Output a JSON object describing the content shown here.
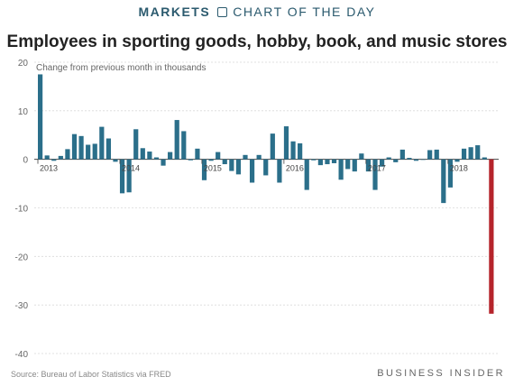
{
  "header": {
    "section": "MARKETS",
    "subtitle": "CHART OF THE DAY"
  },
  "footer": {
    "source": "Source: Bureau of Labor Statistics via FRED",
    "logo": "BUSINESS INSIDER"
  },
  "colors": {
    "bar": "#2b6f8a",
    "highlight": "#b5242b",
    "grid": "#d9d9d9",
    "axis_text": "#666666"
  },
  "icons": {
    "separator": "chart-frame-icon"
  },
  "chart_data": {
    "type": "bar",
    "title": "Employees in sporting goods, hobby, book, and music stores",
    "ylabel": "Change from previous month in thousands",
    "ylim": [
      -40,
      20
    ],
    "yticks": [
      20,
      10,
      0,
      -10,
      -20,
      -30,
      -40
    ],
    "grid": true,
    "x_start": "2013-01",
    "x_end": "2018-12",
    "xticks": [
      {
        "label": "2013",
        "index": 0
      },
      {
        "label": "2014",
        "index": 12
      },
      {
        "label": "2015",
        "index": 24
      },
      {
        "label": "2016",
        "index": 36
      },
      {
        "label": "2017",
        "index": 48
      },
      {
        "label": "2018",
        "index": 60
      }
    ],
    "values": [
      17.5,
      0.8,
      -0.3,
      0.7,
      2.1,
      5.2,
      4.8,
      3.0,
      3.2,
      6.7,
      4.3,
      -0.5,
      -7.0,
      -6.8,
      6.2,
      2.3,
      1.6,
      0.4,
      -1.3,
      1.5,
      8.1,
      5.8,
      -0.2,
      2.2,
      -4.3,
      -0.3,
      1.5,
      -1.0,
      -2.4,
      -3.1,
      0.9,
      -4.8,
      0.9,
      -3.3,
      5.3,
      -4.8,
      6.8,
      3.7,
      3.3,
      -6.3,
      -0.2,
      -1.2,
      -1.0,
      -0.8,
      -4.2,
      -2.0,
      -2.5,
      1.2,
      -2.5,
      -6.3,
      -1.5,
      0.4,
      -0.6,
      2.0,
      0.3,
      -0.3,
      0.0,
      1.9,
      2.0,
      -9.0,
      -5.8,
      -0.5,
      2.2,
      2.5,
      2.9,
      0.4,
      -31.8
    ],
    "highlight_index": 66
  }
}
